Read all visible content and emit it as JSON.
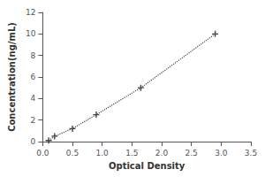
{
  "chart_data": {
    "type": "line",
    "x": [
      0.1,
      0.2,
      0.5,
      0.9,
      1.65,
      2.9
    ],
    "values": [
      0.1,
      0.5,
      1.2,
      2.5,
      5.0,
      10.0
    ],
    "xlabel": "Optical Density",
    "ylabel": "Concentration(ng/mL)",
    "xlim": [
      0,
      3.5
    ],
    "ylim": [
      0,
      12
    ],
    "xticks": [
      {
        "value": 0,
        "label": "0.0"
      },
      0.5,
      {
        "value": 1,
        "label": "1.0"
      },
      1.5,
      {
        "value": 2,
        "label": "2.0"
      },
      2.5,
      {
        "value": 3,
        "label": "3.0"
      },
      3.5
    ],
    "yticks": [
      0,
      2,
      4,
      6,
      8,
      10,
      12
    ],
    "color": "#444444",
    "marker": "+",
    "line_style": "dotted",
    "grid": false
  }
}
